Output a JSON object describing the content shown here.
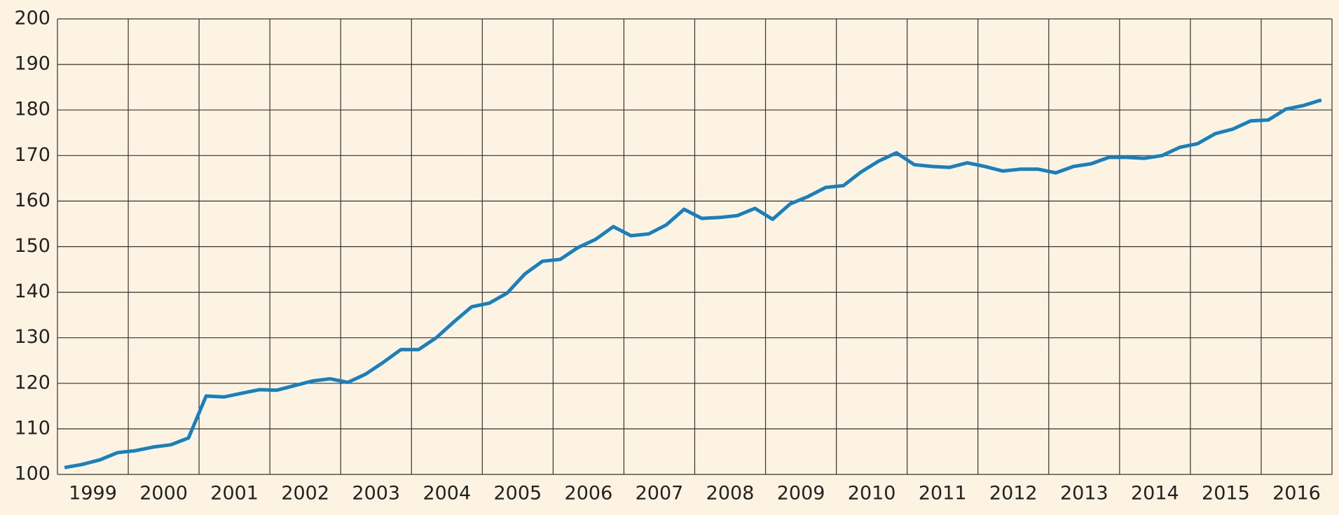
{
  "chart_data": {
    "type": "line",
    "categories": [
      "1999",
      null,
      null,
      null,
      "2000",
      null,
      null,
      null,
      "2001",
      null,
      null,
      null,
      "2002",
      null,
      null,
      null,
      "2003",
      null,
      null,
      null,
      "2004",
      null,
      null,
      null,
      "2005",
      null,
      null,
      null,
      "2006",
      null,
      null,
      null,
      "2007",
      null,
      null,
      null,
      "2008",
      null,
      null,
      null,
      "2009",
      null,
      null,
      null,
      "2010",
      null,
      null,
      null,
      "2011",
      null,
      null,
      null,
      "2012",
      null,
      null,
      null,
      "2013",
      null,
      null,
      null,
      "2014",
      null,
      null,
      null,
      "2015",
      null,
      null,
      null,
      "2016",
      null,
      null,
      null
    ],
    "values": [
      101.5,
      102.2,
      103.2,
      104.8,
      105.2,
      106.0,
      106.5,
      108.0,
      117.2,
      117.0,
      117.8,
      118.6,
      118.5,
      119.5,
      120.5,
      121.0,
      120.2,
      122.0,
      124.6,
      127.4,
      127.4,
      130.0,
      133.5,
      136.8,
      137.6,
      139.8,
      144.0,
      146.8,
      147.2,
      149.8,
      151.6,
      154.4,
      152.4,
      152.8,
      154.8,
      158.2,
      156.2,
      156.4,
      156.8,
      158.4,
      156.0,
      159.4,
      161.0,
      163.0,
      163.4,
      166.4,
      168.8,
      170.6,
      168.0,
      167.6,
      167.4,
      168.4,
      167.6,
      166.6,
      167.0,
      167.0,
      166.2,
      167.6,
      168.2,
      169.6,
      169.6,
      169.4,
      170.0,
      171.8,
      172.6,
      174.8,
      175.8,
      177.6,
      177.8,
      180.2,
      181.0,
      182.2
    ],
    "color": "#1a80bb",
    "ylim": [
      100,
      200
    ],
    "yticks": [
      100,
      110,
      120,
      130,
      140,
      150,
      160,
      170,
      180,
      190,
      200
    ],
    "grid": true
  }
}
